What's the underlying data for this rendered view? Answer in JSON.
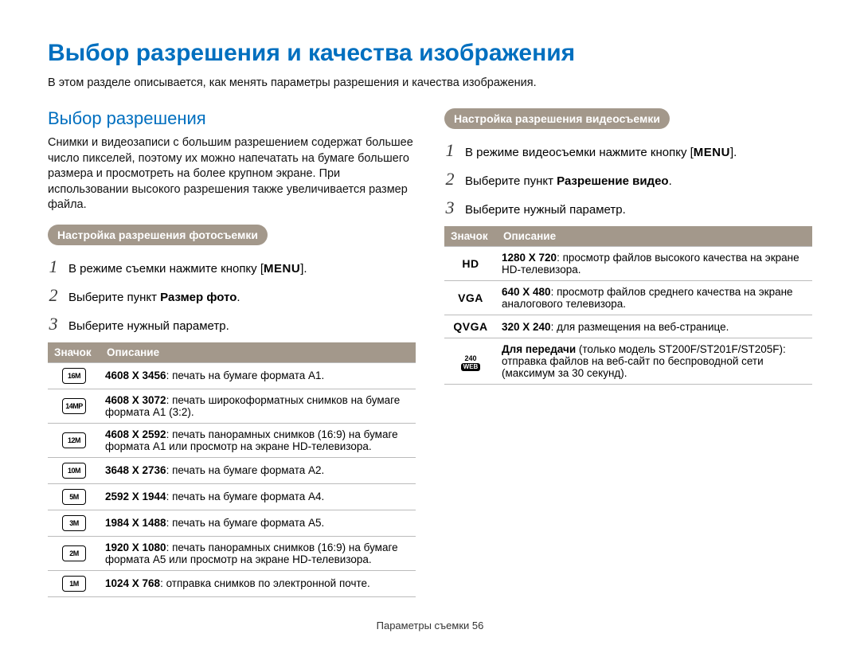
{
  "title": "Выбор разрешения и качества изображения",
  "lead": "В этом разделе описывается, как менять параметры разрешения и качества изображения.",
  "sec_title": "Выбор разрешения",
  "sec_body": "Снимки и видеозаписи с большим разрешением содержат большее число пикселей, поэтому их можно напечатать на бумаге большего размера и просмотреть на более крупном экране. При использовании высокого разрешения также увеличивается размер файла.",
  "chip_photo": "Настройка разрешения фотосъемки",
  "chip_video": "Настройка разрешения видеосъемки",
  "menu_label": "MENU",
  "photo_steps": {
    "s1a": "В режиме съемки нажмите кнопку [",
    "s1b": "].",
    "s2a": "Выберите пункт ",
    "s2b": "Размер фото",
    "s2c": ".",
    "s3": "Выберите нужный параметр."
  },
  "video_steps": {
    "s1a": "В режиме видеосъемки нажмите кнопку [",
    "s1b": "].",
    "s2a": "Выберите пункт ",
    "s2b": "Разрешение видео",
    "s2c": ".",
    "s3": "Выберите нужный параметр."
  },
  "th_icon": "Значок",
  "th_desc": "Описание",
  "photo_rows": [
    {
      "icon": "16M",
      "res": "4608 X 3456",
      "desc": ": печать на бумаге формата A1."
    },
    {
      "icon": "14MP",
      "res": "4608 X 3072",
      "desc": ": печать широкоформатных снимков на бумаге формата A1 (3:2)."
    },
    {
      "icon": "12M",
      "res": "4608 X 2592",
      "desc": ": печать панорамных снимков (16:9) на бумаге формата A1 или просмотр на экране HD-телевизора."
    },
    {
      "icon": "10M",
      "res": "3648 X 2736",
      "desc": ": печать на бумаге формата A2."
    },
    {
      "icon": "5M",
      "res": "2592 X 1944",
      "desc": ": печать на бумаге формата A4."
    },
    {
      "icon": "3M",
      "res": "1984 X 1488",
      "desc": ": печать на бумаге формата A5."
    },
    {
      "icon": "2M",
      "res": "1920 X 1080",
      "desc": ": печать панорамных снимков (16:9) на бумаге формата A5 или просмотр на экране HD-телевизора."
    },
    {
      "icon": "1M",
      "res": "1024 X 768",
      "desc": ": отправка снимков по электронной почте."
    }
  ],
  "video_rows": [
    {
      "icon": "HD",
      "type": "text",
      "res": "1280 X 720",
      "desc": ": просмотр файлов высокого качества на экране HD-телевизора."
    },
    {
      "icon": "VGA",
      "type": "text",
      "res": "640 X 480",
      "desc": ": просмотр файлов среднего качества на экране аналогового телевизора."
    },
    {
      "icon": "QVGA",
      "type": "text",
      "res": "320 X 240",
      "desc": ": для размещения на веб-странице."
    },
    {
      "icon_top": "240",
      "icon_bot": "WEB",
      "type": "stack",
      "res": "Для передачи",
      "desc": " (только модель ST200F/ST201F/ST205F): отправка файлов на веб-сайт по беспроводной сети (максимум за 30 секунд)."
    }
  ],
  "footer": "Параметры съемки  56"
}
